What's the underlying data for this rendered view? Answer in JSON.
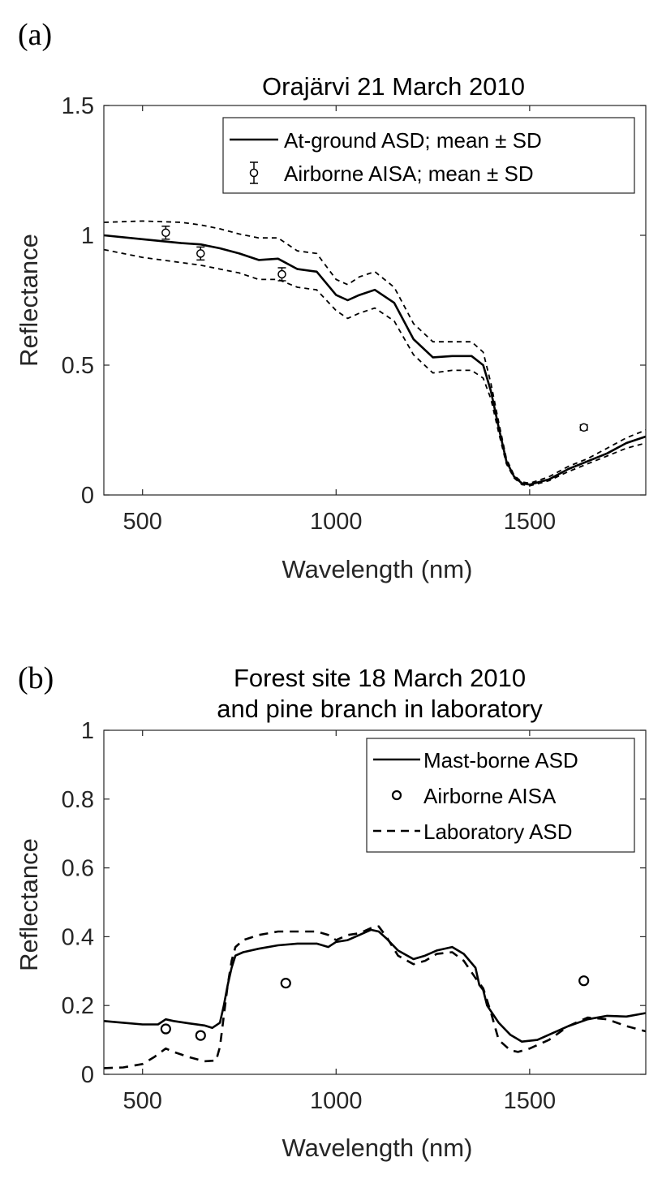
{
  "chart_data": [
    {
      "type": "line",
      "panel_label": "(a)",
      "title": "Orajärvi 21 March 2010",
      "xlabel": "Wavelength (nm)",
      "ylabel": "Reflectance",
      "xlim": [
        400,
        1800
      ],
      "ylim": [
        0,
        1.5
      ],
      "xticks": [
        "500",
        "1000",
        "1500"
      ],
      "yticks": [
        "0",
        "0.5",
        "1",
        "1.5"
      ],
      "legend": {
        "position": "top-right",
        "entries": [
          "At-ground ASD; mean ± SD",
          "Airborne AISA; mean ± SD"
        ]
      },
      "series": [
        {
          "name": "At-ground ASD; mean ± SD",
          "style": "solid",
          "x": [
            400,
            500,
            600,
            650,
            700,
            750,
            800,
            850,
            900,
            950,
            1000,
            1030,
            1060,
            1100,
            1150,
            1200,
            1250,
            1300,
            1350,
            1380,
            1400,
            1420,
            1440,
            1460,
            1480,
            1500,
            1550,
            1600,
            1650,
            1700,
            1750,
            1800
          ],
          "y": [
            1.0,
            0.985,
            0.97,
            0.965,
            0.95,
            0.93,
            0.905,
            0.91,
            0.87,
            0.86,
            0.77,
            0.75,
            0.77,
            0.79,
            0.74,
            0.6,
            0.53,
            0.535,
            0.535,
            0.5,
            0.4,
            0.26,
            0.13,
            0.07,
            0.045,
            0.04,
            0.06,
            0.1,
            0.13,
            0.16,
            0.2,
            0.225
          ]
        },
        {
          "name": "upper SD",
          "style": "dashed",
          "x": [
            400,
            500,
            600,
            650,
            700,
            750,
            800,
            850,
            900,
            950,
            1000,
            1030,
            1060,
            1100,
            1150,
            1200,
            1250,
            1300,
            1350,
            1380,
            1400,
            1420,
            1440,
            1460,
            1480,
            1500,
            1550,
            1600,
            1650,
            1700,
            1750,
            1800
          ],
          "y": [
            1.05,
            1.055,
            1.05,
            1.04,
            1.025,
            1.005,
            0.99,
            0.99,
            0.94,
            0.93,
            0.83,
            0.81,
            0.84,
            0.86,
            0.8,
            0.66,
            0.59,
            0.59,
            0.59,
            0.55,
            0.43,
            0.28,
            0.14,
            0.075,
            0.05,
            0.045,
            0.07,
            0.11,
            0.14,
            0.18,
            0.22,
            0.25
          ]
        },
        {
          "name": "lower SD",
          "style": "dashed",
          "x": [
            400,
            500,
            600,
            650,
            700,
            750,
            800,
            850,
            900,
            950,
            1000,
            1030,
            1060,
            1100,
            1150,
            1200,
            1250,
            1300,
            1350,
            1380,
            1400,
            1420,
            1440,
            1460,
            1480,
            1500,
            1550,
            1600,
            1650,
            1700,
            1750,
            1800
          ],
          "y": [
            0.945,
            0.915,
            0.895,
            0.885,
            0.87,
            0.855,
            0.83,
            0.83,
            0.8,
            0.79,
            0.71,
            0.68,
            0.7,
            0.72,
            0.67,
            0.54,
            0.47,
            0.48,
            0.48,
            0.45,
            0.37,
            0.24,
            0.12,
            0.065,
            0.04,
            0.035,
            0.055,
            0.09,
            0.12,
            0.15,
            0.18,
            0.2
          ]
        },
        {
          "name": "Airborne AISA; mean ± SD",
          "style": "markers-errorbars",
          "x": [
            560,
            650,
            860,
            1640
          ],
          "y": [
            1.01,
            0.93,
            0.85,
            0.26
          ],
          "err": [
            0.025,
            0.025,
            0.025,
            0.01
          ]
        }
      ]
    },
    {
      "type": "line",
      "panel_label": "(b)",
      "title": "Forest site 18 March 2010",
      "subtitle": "and pine branch in laboratory",
      "xlabel": "Wavelength (nm)",
      "ylabel": "Reflectance",
      "xlim": [
        400,
        1800
      ],
      "ylim": [
        0,
        1
      ],
      "xticks": [
        "500",
        "1000",
        "1500"
      ],
      "yticks": [
        "0",
        "0.2",
        "0.4",
        "0.6",
        "0.8",
        "1"
      ],
      "legend": {
        "position": "top-right",
        "entries": [
          "Mast-borne ASD",
          "Airborne AISA",
          "Laboratory ASD"
        ]
      },
      "series": [
        {
          "name": "Mast-borne ASD",
          "style": "solid",
          "x": [
            400,
            450,
            500,
            540,
            560,
            580,
            620,
            660,
            680,
            700,
            710,
            720,
            730,
            740,
            760,
            800,
            850,
            900,
            950,
            980,
            1000,
            1030,
            1060,
            1090,
            1110,
            1130,
            1160,
            1200,
            1230,
            1260,
            1300,
            1330,
            1360,
            1370,
            1380,
            1390,
            1420,
            1450,
            1480,
            1520,
            1560,
            1600,
            1650,
            1700,
            1750,
            1800
          ],
          "y": [
            0.155,
            0.15,
            0.145,
            0.145,
            0.16,
            0.155,
            0.148,
            0.142,
            0.135,
            0.15,
            0.2,
            0.26,
            0.31,
            0.345,
            0.355,
            0.365,
            0.375,
            0.38,
            0.38,
            0.37,
            0.385,
            0.39,
            0.405,
            0.42,
            0.415,
            0.395,
            0.36,
            0.335,
            0.345,
            0.36,
            0.37,
            0.35,
            0.31,
            0.26,
            0.245,
            0.2,
            0.15,
            0.115,
            0.095,
            0.1,
            0.12,
            0.14,
            0.16,
            0.17,
            0.168,
            0.178
          ]
        },
        {
          "name": "Airborne AISA",
          "style": "markers",
          "x": [
            560,
            650,
            870,
            1640
          ],
          "y": [
            0.132,
            0.113,
            0.265,
            0.272
          ]
        },
        {
          "name": "Laboratory ASD",
          "style": "dashed",
          "x": [
            400,
            450,
            500,
            530,
            560,
            580,
            620,
            660,
            690,
            700,
            710,
            720,
            730,
            740,
            760,
            800,
            850,
            900,
            950,
            980,
            1000,
            1030,
            1060,
            1090,
            1110,
            1130,
            1160,
            1200,
            1230,
            1260,
            1300,
            1330,
            1360,
            1380,
            1400,
            1420,
            1450,
            1470,
            1500,
            1550,
            1600,
            1650,
            1700,
            1750,
            1800
          ],
          "y": [
            0.018,
            0.02,
            0.03,
            0.05,
            0.075,
            0.065,
            0.05,
            0.038,
            0.04,
            0.08,
            0.17,
            0.26,
            0.33,
            0.37,
            0.39,
            0.405,
            0.415,
            0.415,
            0.415,
            0.405,
            0.39,
            0.405,
            0.41,
            0.425,
            0.43,
            0.4,
            0.345,
            0.32,
            0.33,
            0.35,
            0.355,
            0.33,
            0.28,
            0.25,
            0.18,
            0.1,
            0.07,
            0.065,
            0.075,
            0.1,
            0.14,
            0.165,
            0.16,
            0.14,
            0.125
          ]
        }
      ]
    }
  ]
}
